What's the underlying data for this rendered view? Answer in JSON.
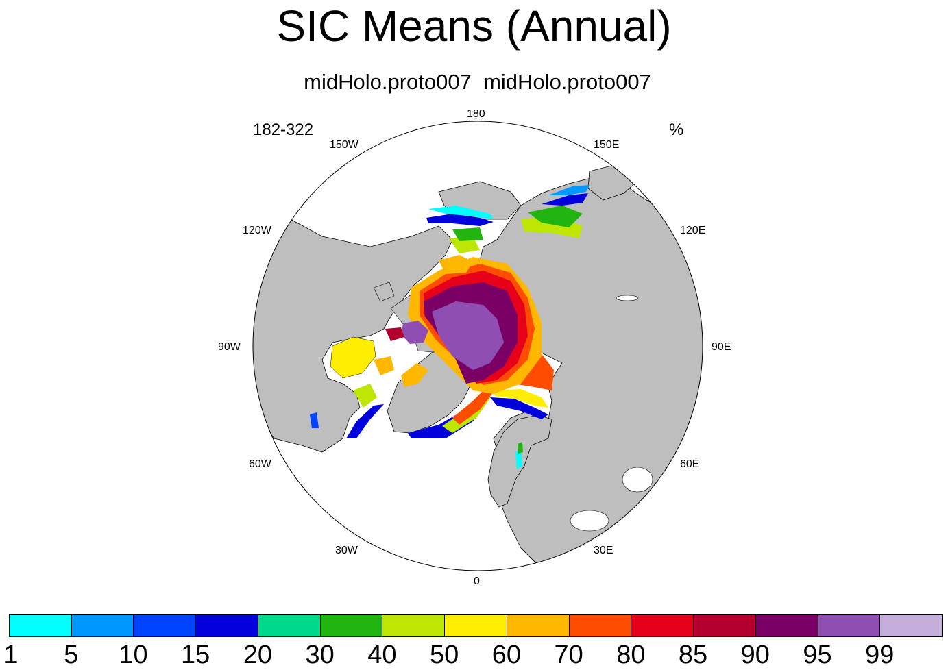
{
  "title": "SIC Means (Annual)",
  "subtitle": "midHolo.proto007  midHolo.proto007",
  "left_label": "182-322",
  "right_label": "%",
  "longitude_labels": {
    "lon_180": "180",
    "lon_150W": "150W",
    "lon_150E": "150E",
    "lon_120W": "120W",
    "lon_120E": "120E",
    "lon_90W": "90W",
    "lon_90E": "90E",
    "lon_60W": "60W",
    "lon_60E": "60E",
    "lon_30W": "30W",
    "lon_30E": "30E",
    "lon_0": "0"
  },
  "colors": {
    "land": "#bebebe",
    "ocean": "#ffffff"
  },
  "colorbar": {
    "colors": [
      "#00ffff",
      "#0099ff",
      "#0044ff",
      "#0000dd",
      "#00d98a",
      "#22b511",
      "#bde600",
      "#ffee00",
      "#ffb700",
      "#ff4d00",
      "#e6001a",
      "#b3002e",
      "#7a0066",
      "#8f4fb2",
      "#c3aedc"
    ],
    "labels": [
      "1",
      "5",
      "10",
      "15",
      "20",
      "30",
      "40",
      "50",
      "60",
      "70",
      "80",
      "85",
      "90",
      "95",
      "99"
    ]
  }
}
